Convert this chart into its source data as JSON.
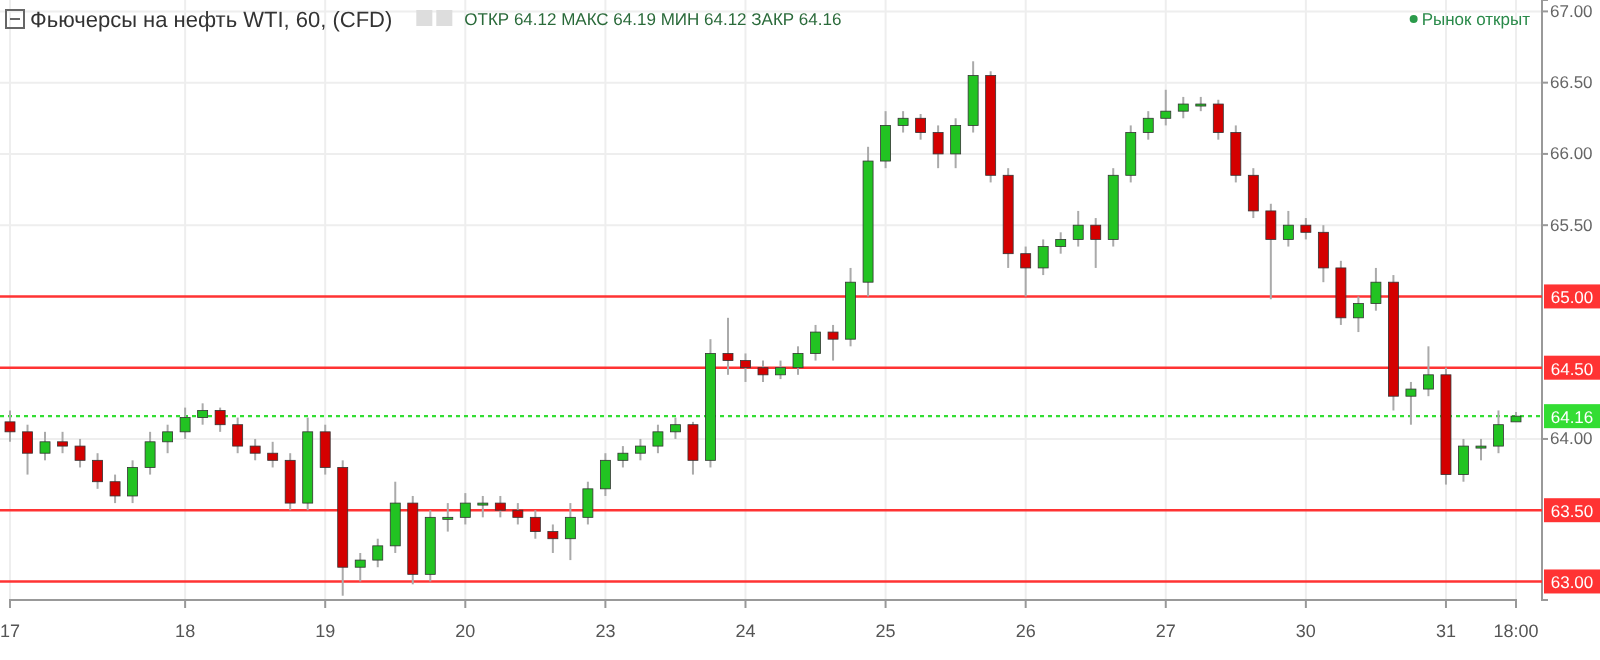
{
  "chart_data": {
    "type": "candlestick",
    "title": "Фьючерсы на нефть WTI, 60, (CFD)",
    "annotations": [
      "ОТКР 64.12 МАКС 64.19 МИН 64.12 ЗАКР 64.16",
      "Рынок открыт"
    ],
    "categories": [
      "17",
      null,
      null,
      null,
      null,
      null,
      null,
      null,
      null,
      null,
      "18",
      null,
      null,
      null,
      null,
      null,
      null,
      null,
      "19",
      null,
      null,
      null,
      null,
      null,
      null,
      null,
      "20",
      null,
      null,
      null,
      null,
      null,
      null,
      null,
      "23",
      null,
      null,
      null,
      null,
      null,
      null,
      null,
      "24",
      null,
      null,
      null,
      null,
      null,
      null,
      null,
      "25",
      null,
      null,
      null,
      null,
      null,
      null,
      null,
      "26",
      null,
      null,
      null,
      null,
      null,
      null,
      null,
      "27",
      null,
      null,
      null,
      null,
      null,
      null,
      null,
      "30",
      null,
      null,
      null,
      null,
      null,
      null,
      null,
      "31",
      null,
      null,
      null,
      "18:00"
    ],
    "ohlc": [
      [
        64.12,
        64.2,
        63.98,
        64.05
      ],
      [
        64.05,
        64.1,
        63.75,
        63.9
      ],
      [
        63.9,
        64.05,
        63.85,
        63.98
      ],
      [
        63.98,
        64.05,
        63.9,
        63.95
      ],
      [
        63.95,
        64.0,
        63.8,
        63.85
      ],
      [
        63.85,
        63.9,
        63.65,
        63.7
      ],
      [
        63.7,
        63.75,
        63.55,
        63.6
      ],
      [
        63.6,
        63.85,
        63.55,
        63.8
      ],
      [
        63.8,
        64.05,
        63.75,
        63.98
      ],
      [
        63.98,
        64.1,
        63.9,
        64.05
      ],
      [
        64.05,
        64.22,
        64.0,
        64.15
      ],
      [
        64.15,
        64.25,
        64.1,
        64.2
      ],
      [
        64.2,
        64.22,
        64.05,
        64.1
      ],
      [
        64.1,
        64.15,
        63.9,
        63.95
      ],
      [
        63.95,
        64.0,
        63.85,
        63.9
      ],
      [
        63.9,
        63.98,
        63.8,
        63.85
      ],
      [
        63.85,
        63.9,
        63.5,
        63.55
      ],
      [
        63.55,
        64.15,
        63.5,
        64.05
      ],
      [
        64.05,
        64.1,
        63.75,
        63.8
      ],
      [
        63.8,
        63.85,
        62.9,
        63.1
      ],
      [
        63.1,
        63.2,
        63.0,
        63.15
      ],
      [
        63.15,
        63.3,
        63.1,
        63.25
      ],
      [
        63.25,
        63.7,
        63.2,
        63.55
      ],
      [
        63.55,
        63.6,
        62.98,
        63.05
      ],
      [
        63.05,
        63.5,
        63.0,
        63.45
      ],
      [
        63.45,
        63.55,
        63.35,
        63.45
      ],
      [
        63.45,
        63.62,
        63.4,
        63.55
      ],
      [
        63.55,
        63.6,
        63.45,
        63.55
      ],
      [
        63.55,
        63.6,
        63.45,
        63.5
      ],
      [
        63.5,
        63.55,
        63.4,
        63.45
      ],
      [
        63.45,
        63.5,
        63.3,
        63.35
      ],
      [
        63.35,
        63.4,
        63.2,
        63.3
      ],
      [
        63.3,
        63.55,
        63.15,
        63.45
      ],
      [
        63.45,
        63.7,
        63.4,
        63.65
      ],
      [
        63.65,
        63.9,
        63.6,
        63.85
      ],
      [
        63.85,
        63.95,
        63.8,
        63.9
      ],
      [
        63.9,
        64.0,
        63.85,
        63.95
      ],
      [
        63.95,
        64.1,
        63.9,
        64.05
      ],
      [
        64.05,
        64.15,
        64.0,
        64.1
      ],
      [
        64.1,
        64.12,
        63.75,
        63.85
      ],
      [
        63.85,
        64.7,
        63.8,
        64.6
      ],
      [
        64.6,
        64.85,
        64.45,
        64.55
      ],
      [
        64.55,
        64.6,
        64.4,
        64.5
      ],
      [
        64.5,
        64.55,
        64.4,
        64.45
      ],
      [
        64.45,
        64.55,
        64.42,
        64.5
      ],
      [
        64.5,
        64.65,
        64.45,
        64.6
      ],
      [
        64.6,
        64.8,
        64.55,
        64.75
      ],
      [
        64.75,
        64.8,
        64.55,
        64.7
      ],
      [
        64.7,
        65.2,
        64.65,
        65.1
      ],
      [
        65.1,
        66.05,
        65.0,
        65.95
      ],
      [
        65.95,
        66.3,
        65.9,
        66.2
      ],
      [
        66.2,
        66.3,
        66.15,
        66.25
      ],
      [
        66.25,
        66.28,
        66.1,
        66.15
      ],
      [
        66.15,
        66.2,
        65.9,
        66.0
      ],
      [
        66.0,
        66.25,
        65.9,
        66.2
      ],
      [
        66.2,
        66.65,
        66.15,
        66.55
      ],
      [
        66.55,
        66.58,
        65.8,
        65.85
      ],
      [
        65.85,
        65.9,
        65.2,
        65.3
      ],
      [
        65.3,
        65.35,
        65.0,
        65.2
      ],
      [
        65.2,
        65.4,
        65.15,
        65.35
      ],
      [
        65.35,
        65.45,
        65.3,
        65.4
      ],
      [
        65.4,
        65.6,
        65.35,
        65.5
      ],
      [
        65.5,
        65.55,
        65.2,
        65.4
      ],
      [
        65.4,
        65.9,
        65.35,
        65.85
      ],
      [
        65.85,
        66.2,
        65.8,
        66.15
      ],
      [
        66.15,
        66.3,
        66.1,
        66.25
      ],
      [
        66.25,
        66.45,
        66.2,
        66.3
      ],
      [
        66.3,
        66.4,
        66.25,
        66.35
      ],
      [
        66.35,
        66.4,
        66.3,
        66.35
      ],
      [
        66.35,
        66.38,
        66.1,
        66.15
      ],
      [
        66.15,
        66.2,
        65.8,
        65.85
      ],
      [
        65.85,
        65.9,
        65.55,
        65.6
      ],
      [
        65.6,
        65.65,
        64.98,
        65.4
      ],
      [
        65.4,
        65.6,
        65.35,
        65.5
      ],
      [
        65.5,
        65.55,
        65.4,
        65.45
      ],
      [
        65.45,
        65.5,
        65.1,
        65.2
      ],
      [
        65.2,
        65.25,
        64.8,
        64.85
      ],
      [
        64.85,
        65.0,
        64.75,
        64.95
      ],
      [
        64.95,
        65.2,
        64.9,
        65.1
      ],
      [
        65.1,
        65.15,
        64.2,
        64.3
      ],
      [
        64.3,
        64.4,
        64.1,
        64.35
      ],
      [
        64.35,
        64.65,
        64.3,
        64.45
      ],
      [
        64.45,
        64.5,
        63.68,
        63.75
      ],
      [
        63.75,
        64.0,
        63.7,
        63.95
      ],
      [
        63.95,
        64.0,
        63.85,
        63.95
      ],
      [
        63.95,
        64.2,
        63.9,
        64.1
      ],
      [
        64.12,
        64.19,
        64.12,
        64.16
      ]
    ],
    "ylim": [
      62.87,
      67.08
    ],
    "yticks": [
      {
        "value": 64,
        "label": "64.00"
      },
      {
        "value": 65.5,
        "label": "65.50"
      },
      {
        "value": 66,
        "label": "66.00"
      },
      {
        "value": 66.5,
        "label": "66.50"
      },
      {
        "value": 67,
        "label": "67.00"
      }
    ],
    "ref_lines": [
      {
        "axis": "y",
        "value": 65,
        "label": "65.00",
        "color": "#ff3333"
      },
      {
        "axis": "y",
        "value": 64.5,
        "label": "64.50",
        "color": "#ff3333"
      },
      {
        "axis": "y",
        "value": 63.5,
        "label": "63.50",
        "color": "#ff3333"
      },
      {
        "axis": "y",
        "value": 63,
        "label": "63.00",
        "color": "#ff3333"
      },
      {
        "axis": "y",
        "value": 64.16,
        "label": "64.16",
        "color": "#33dd33",
        "line_style": "dotted"
      }
    ],
    "grid": true
  }
}
